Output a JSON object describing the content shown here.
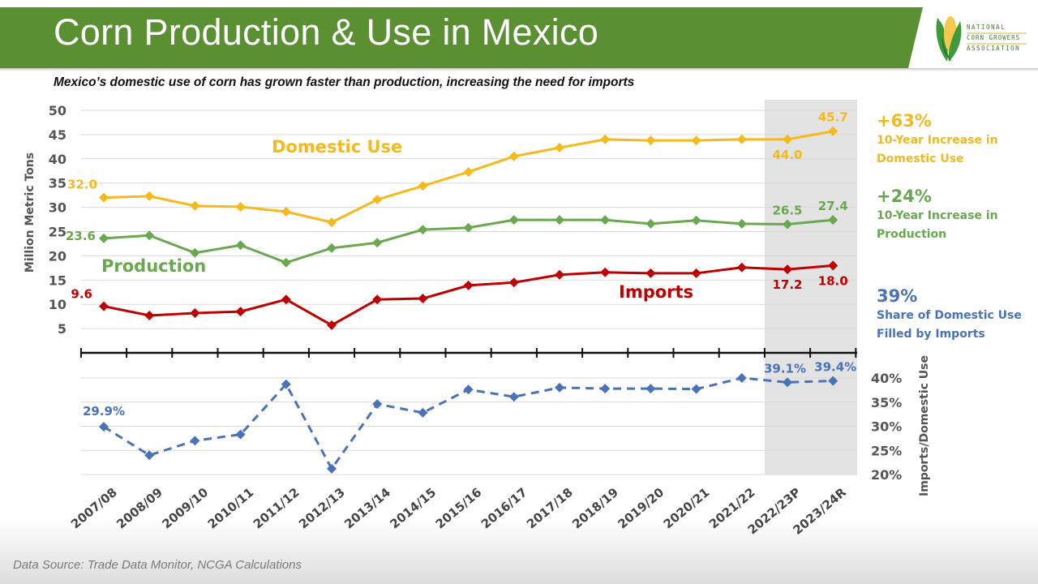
{
  "header": {
    "title": "Corn Production & Use in Mexico",
    "logo_text": [
      "NATIONAL",
      "CORN GROWERS",
      "ASSOCIATION"
    ],
    "bar_color": "#5a8f32"
  },
  "subtitle": "Mexico’s domestic use of corn has grown faster than production, increasing the need for imports",
  "callouts": [
    {
      "big": "+63%",
      "small": "10-Year Increase in Domestic Use",
      "color": "#f0b923"
    },
    {
      "big": "+24%",
      "small": "10-Year Increase in Production",
      "color": "#6aa84f"
    },
    {
      "big": "39%",
      "small": "Share of Domestic Use Filled by Imports",
      "color": "#4a72b8"
    }
  ],
  "source": "Data Source: Trade Data Monitor, NCGA Calculations",
  "chart_data": [
    {
      "type": "line",
      "title": "Mexico corn: Domestic Use, Production, Imports",
      "ylabel": "Million Metric Tons",
      "ylim": [
        0,
        50
      ],
      "yticks": [
        "5",
        "10",
        "15",
        "20",
        "25",
        "30",
        "35",
        "40",
        "45",
        "50"
      ],
      "grid": true,
      "categories": [
        "2007/08",
        "2008/09",
        "2009/10",
        "2010/11",
        "2011/12",
        "2012/13",
        "2013/14",
        "2014/15",
        "2015/16",
        "2016/17",
        "2017/18",
        "2018/19",
        "2019/20",
        "2020/21",
        "2021/22",
        "2022/23P",
        "2023/24R"
      ],
      "highlight_categories": [
        "2022/23P",
        "2023/24R"
      ],
      "highlight_color": "#e3e3e3",
      "series": [
        {
          "name": "Domestic Use",
          "color": "#f5b91b",
          "values": [
            32.0,
            32.3,
            30.3,
            30.1,
            29.1,
            26.9,
            31.6,
            34.4,
            37.3,
            40.5,
            42.3,
            44.0,
            43.8,
            43.8,
            44.0,
            44.0,
            45.7
          ],
          "labels": [
            {
              "index": 0,
              "text": "32.0"
            },
            {
              "index": 15,
              "text": "44.0"
            },
            {
              "index": 16,
              "text": "45.7"
            }
          ],
          "annotation": "Domestic Use"
        },
        {
          "name": "Production",
          "color": "#6aa84f",
          "values": [
            23.6,
            24.2,
            20.6,
            22.2,
            18.6,
            21.6,
            22.7,
            25.4,
            25.8,
            27.4,
            27.4,
            27.4,
            26.6,
            27.3,
            26.6,
            26.5,
            27.4
          ],
          "labels": [
            {
              "index": 0,
              "text": "23.6"
            },
            {
              "index": 15,
              "text": "26.5"
            },
            {
              "index": 16,
              "text": "27.4"
            }
          ],
          "annotation": "Production"
        },
        {
          "name": "Imports",
          "color": "#c00000",
          "values": [
            9.6,
            7.7,
            8.2,
            8.5,
            11.0,
            5.7,
            11.0,
            11.2,
            13.9,
            14.5,
            16.1,
            16.6,
            16.4,
            16.4,
            17.6,
            17.2,
            18.0
          ],
          "labels": [
            {
              "index": 0,
              "text": "9.6"
            },
            {
              "index": 15,
              "text": "17.2"
            },
            {
              "index": 16,
              "text": "18.0"
            }
          ],
          "annotation": "Imports"
        }
      ]
    },
    {
      "type": "line",
      "title": "Imports / Domestic Use",
      "ylabel": "Imports/Domestic Use",
      "ylim": [
        20,
        40
      ],
      "yticks": [
        "20%",
        "25%",
        "30%",
        "35%",
        "40%"
      ],
      "grid": true,
      "line_style": "dashed",
      "categories": [
        "2007/08",
        "2008/09",
        "2009/10",
        "2010/11",
        "2011/12",
        "2012/13",
        "2013/14",
        "2014/15",
        "2015/16",
        "2016/17",
        "2017/18",
        "2018/19",
        "2019/20",
        "2020/21",
        "2021/22",
        "2022/23P",
        "2023/24R"
      ],
      "series": [
        {
          "name": "Imports/Domestic Use",
          "color": "#4a72b8",
          "values": [
            29.9,
            24.0,
            27.0,
            28.3,
            38.7,
            21.2,
            34.6,
            32.8,
            37.6,
            36.1,
            38.0,
            37.8,
            37.8,
            37.7,
            40.0,
            39.1,
            39.4
          ],
          "labels": [
            {
              "index": 0,
              "text": "29.9%"
            },
            {
              "index": 15,
              "text": "39.1%"
            },
            {
              "index": 16,
              "text": "39.4%"
            }
          ]
        }
      ]
    }
  ]
}
